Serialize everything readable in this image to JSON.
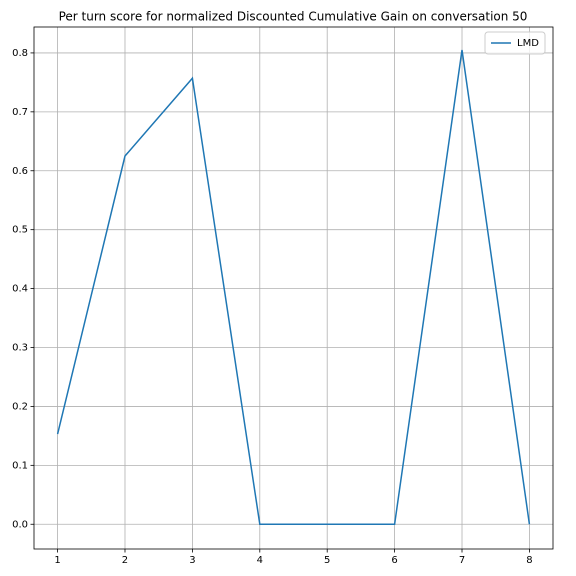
{
  "chart_data": {
    "type": "line",
    "title": "Per turn score for normalized Discounted Cumulative Gain on conversation 50",
    "x": [
      1,
      2,
      3,
      4,
      5,
      6,
      7,
      8
    ],
    "series": [
      {
        "name": "LMD",
        "color": "#1f77b4",
        "values": [
          0.153,
          0.625,
          0.757,
          0,
          0,
          0,
          0.805,
          0
        ]
      }
    ],
    "xlim": [
      0.65,
      8.35
    ],
    "xticks": [
      1,
      2,
      3,
      4,
      5,
      6,
      7,
      8
    ],
    "ylim": [
      -0.042,
      0.844
    ],
    "yticks": [
      {
        "value": 0,
        "label": "0.0"
      },
      0.1,
      0.2,
      0.3,
      0.4,
      0.5,
      0.6,
      0.7,
      0.8
    ],
    "grid": true,
    "legend": "upper-right"
  }
}
